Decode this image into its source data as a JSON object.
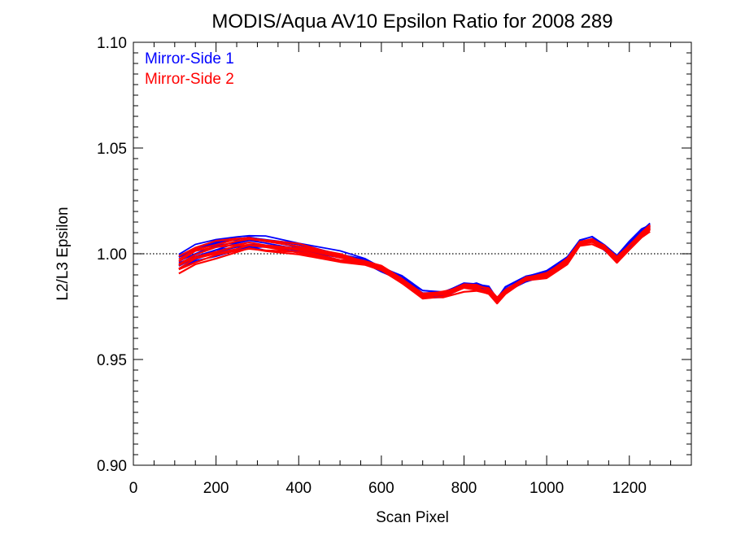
{
  "chart_data": {
    "type": "line",
    "title": "MODIS/Aqua AV10 Epsilon Ratio for 2008 289",
    "xlabel": "Scan Pixel",
    "ylabel": "L2/L3 Epsilon",
    "xlim": [
      0,
      1350
    ],
    "ylim": [
      0.9,
      1.1
    ],
    "xticks": [
      0,
      200,
      400,
      600,
      800,
      1000,
      1200
    ],
    "xtick_labels": [
      "0",
      "200",
      "400",
      "600",
      "800",
      "1000",
      "1200"
    ],
    "yticks": [
      0.9,
      0.95,
      1.0,
      1.05,
      1.1
    ],
    "ytick_labels": [
      "0.90",
      "0.95",
      "1.00",
      "1.05",
      "1.10"
    ],
    "reference_line": 1.0,
    "legend_position": "top-left",
    "grid": false,
    "colors": {
      "ms1": "#0000ff",
      "ms2": "#ff0000",
      "axis": "#000000"
    },
    "series": [
      {
        "name": "Mirror-Side 1",
        "color": "#0000ff",
        "x": [
          110,
          150,
          200,
          250,
          280,
          320,
          400,
          500,
          560,
          600,
          650,
          700,
          750,
          800,
          830,
          860,
          880,
          900,
          950,
          1000,
          1050,
          1080,
          1110,
          1140,
          1170,
          1200,
          1230,
          1250
        ],
        "y": [
          0.996,
          1.0,
          1.003,
          1.005,
          1.006,
          1.005,
          1.003,
          0.999,
          0.996,
          0.993,
          0.988,
          0.981,
          0.981,
          0.985,
          0.985,
          0.983,
          0.978,
          0.983,
          0.988,
          0.991,
          0.998,
          1.005,
          1.007,
          1.003,
          0.998,
          1.004,
          1.01,
          1.013
        ]
      },
      {
        "name": "Mirror-Side 2",
        "color": "#ff0000",
        "x": [
          110,
          150,
          200,
          250,
          280,
          320,
          400,
          500,
          560,
          600,
          650,
          700,
          750,
          800,
          830,
          860,
          880,
          900,
          950,
          1000,
          1050,
          1080,
          1110,
          1140,
          1170,
          1200,
          1230,
          1250
        ],
        "y": [
          0.995,
          0.999,
          1.002,
          1.004,
          1.005,
          1.004,
          1.002,
          0.998,
          0.996,
          0.993,
          0.987,
          0.98,
          0.981,
          0.984,
          0.984,
          0.982,
          0.978,
          0.982,
          0.988,
          0.99,
          0.997,
          1.005,
          1.006,
          1.003,
          0.997,
          1.003,
          1.009,
          1.012
        ]
      }
    ]
  }
}
